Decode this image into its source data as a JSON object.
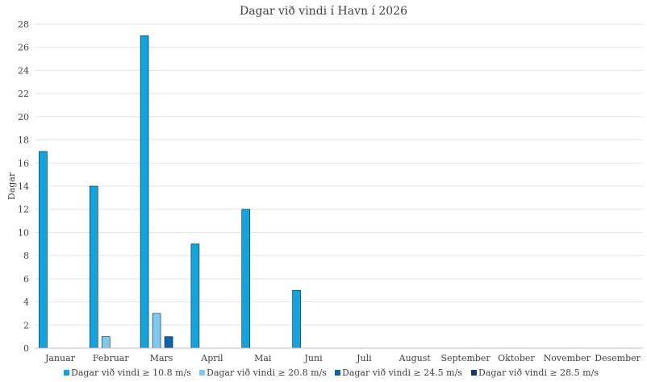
{
  "chart_data": {
    "type": "bar",
    "title": "Dagar við vindi í Havn í 2026",
    "xlabel": "",
    "ylabel": "Dagar",
    "ylim": [
      0,
      28
    ],
    "yticks": [
      0,
      2,
      4,
      6,
      8,
      10,
      12,
      14,
      16,
      18,
      20,
      22,
      24,
      26,
      28
    ],
    "grid": true,
    "legend_position": "bottom",
    "categories": [
      "Januar",
      "Februar",
      "Mars",
      "April",
      "Mai",
      "Juni",
      "Juli",
      "August",
      "September",
      "Oktober",
      "November",
      "Desember"
    ],
    "series": [
      {
        "name": "Dagar við vindi ≥ 10.8 m/s",
        "color": "#10a5e0",
        "values": [
          17,
          14,
          27,
          9,
          12,
          5,
          0,
          0,
          0,
          0,
          0,
          0
        ]
      },
      {
        "name": "Dagar við vindi ≥ 20.8 m/s",
        "color": "#7ccaef",
        "values": [
          0,
          1,
          3,
          0,
          0,
          0,
          0,
          0,
          0,
          0,
          0,
          0
        ]
      },
      {
        "name": "Dagar við vindi ≥ 24.5 m/s",
        "color": "#0d62ac",
        "values": [
          0,
          0,
          1,
          0,
          0,
          0,
          0,
          0,
          0,
          0,
          0,
          0
        ]
      },
      {
        "name": "Dagar við vindi ≥ 28.5 m/s",
        "color": "#0b3a6b",
        "values": [
          0,
          0,
          0,
          0,
          0,
          0,
          0,
          0,
          0,
          0,
          0,
          0
        ]
      }
    ]
  }
}
